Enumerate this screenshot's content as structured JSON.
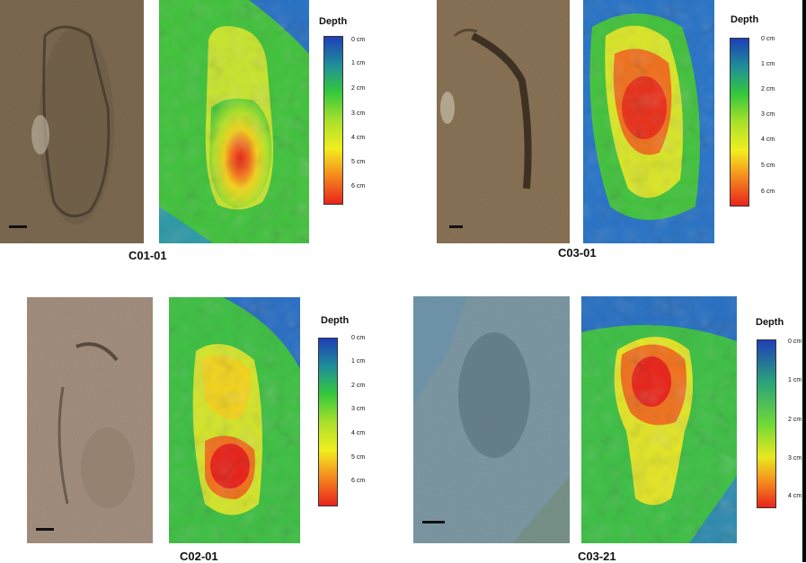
{
  "colors": {
    "depth_shallow": "#1f3fb8",
    "depth_mid": "#33c83c",
    "depth_deep": "#e8241c"
  },
  "legend": {
    "title": "Depth",
    "ticks_6cm": [
      "0 cm",
      "1 cm",
      "2 cm",
      "3 cm",
      "4 cm",
      "5 cm",
      "6 cm"
    ],
    "ticks_4cm": [
      "0 cm",
      "1 cm",
      "2 cm",
      "3 cm",
      "4 cm"
    ]
  },
  "panels": [
    {
      "label": "C01-01"
    },
    {
      "label": "C03-01"
    },
    {
      "label": "C02-01"
    },
    {
      "label": "C03-21"
    }
  ]
}
